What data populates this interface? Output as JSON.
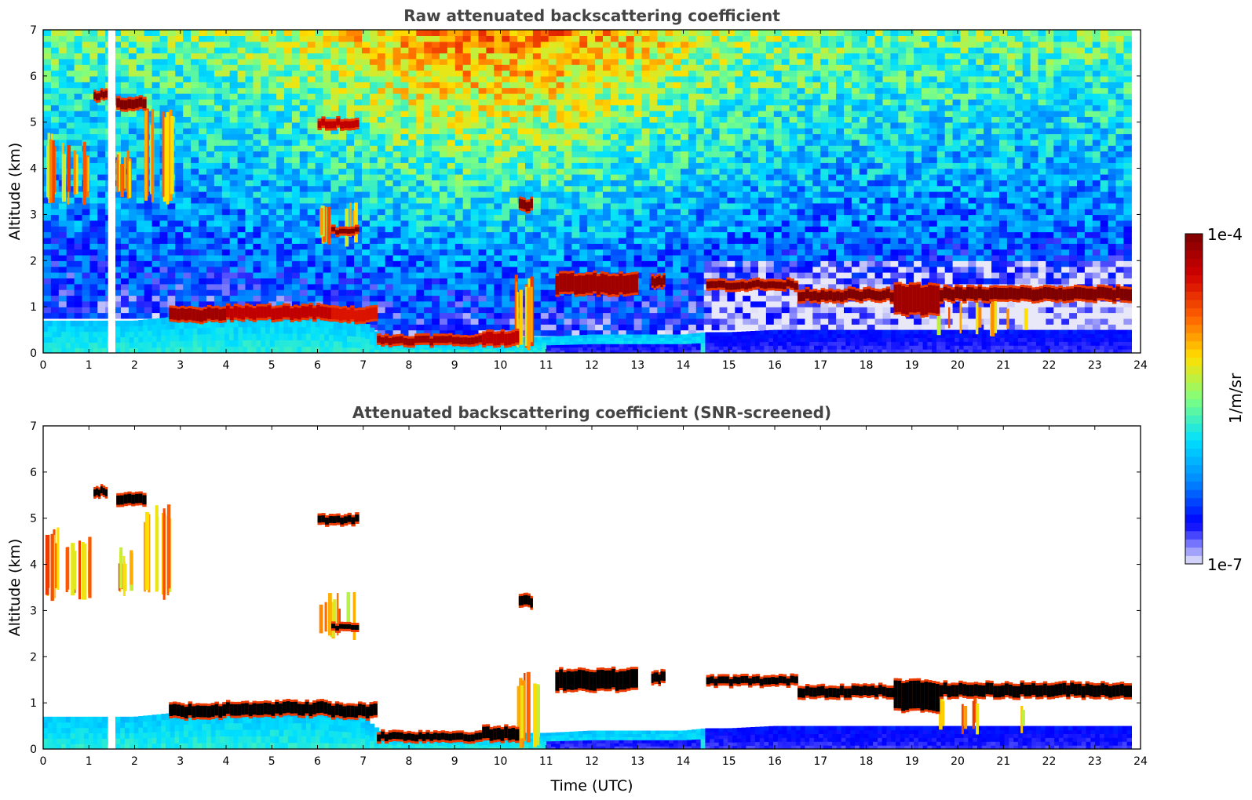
{
  "chart_data": [
    {
      "type": "heatmap",
      "title": "Raw attenuated backscattering coefficient",
      "xlabel": "",
      "ylabel": "Altitude (km)",
      "xlim": [
        0,
        24
      ],
      "ylim": [
        0,
        7
      ],
      "x_ticks": [
        "0",
        "1",
        "2",
        "3",
        "4",
        "5",
        "6",
        "7",
        "8",
        "9",
        "10",
        "11",
        "12",
        "13",
        "14",
        "15",
        "16",
        "17",
        "18",
        "19",
        "20",
        "21",
        "22",
        "23",
        "24"
      ],
      "y_ticks": [
        "0",
        "1",
        "2",
        "3",
        "4",
        "5",
        "6",
        "7"
      ],
      "grid": false,
      "screened": false,
      "data_gap": [
        1.42,
        1.58
      ],
      "boundary_layer_top_km": [
        [
          0,
          0.7
        ],
        [
          2,
          0.7
        ],
        [
          3,
          0.8
        ],
        [
          4,
          0.85
        ],
        [
          5,
          0.85
        ],
        [
          6,
          0.85
        ],
        [
          7,
          0.7
        ],
        [
          7.5,
          0.3
        ],
        [
          8,
          0.25
        ],
        [
          9,
          0.25
        ],
        [
          10,
          0.3
        ],
        [
          10.5,
          0.35
        ],
        [
          11,
          0.35
        ],
        [
          12,
          0.4
        ],
        [
          13,
          0.4
        ],
        [
          14,
          0.4
        ],
        [
          14.5,
          0.45
        ],
        [
          15,
          0.45
        ],
        [
          16,
          0.5
        ],
        [
          17,
          0.5
        ],
        [
          18,
          0.5
        ],
        [
          19,
          0.5
        ],
        [
          20,
          0.5
        ],
        [
          21,
          0.5
        ],
        [
          22,
          0.5
        ],
        [
          23,
          0.5
        ],
        [
          23.8,
          0.5
        ]
      ],
      "cloud_layers": [
        {
          "x": [
            1.1,
            1.4
          ],
          "base_km": 5.5,
          "top_km": 5.65,
          "intensity": 1.0
        },
        {
          "x": [
            1.6,
            2.25
          ],
          "base_km": 5.3,
          "top_km": 5.5,
          "intensity": 1.0
        },
        {
          "x": [
            2.75,
            4.0
          ],
          "base_km": 0.7,
          "top_km": 0.95,
          "intensity": 0.95
        },
        {
          "x": [
            4.0,
            6.3
          ],
          "base_km": 0.75,
          "top_km": 1.0,
          "intensity": 0.9
        },
        {
          "x": [
            6.3,
            7.3
          ],
          "base_km": 0.7,
          "top_km": 0.95,
          "intensity": 0.85
        },
        {
          "x": [
            6.0,
            6.9
          ],
          "base_km": 4.9,
          "top_km": 5.05,
          "intensity": 0.9
        },
        {
          "x": [
            6.3,
            6.9
          ],
          "base_km": 2.6,
          "top_km": 2.7,
          "intensity": 1.0
        },
        {
          "x": [
            7.3,
            9.6
          ],
          "base_km": 0.2,
          "top_km": 0.35,
          "intensity": 0.95
        },
        {
          "x": [
            9.6,
            10.4
          ],
          "base_km": 0.2,
          "top_km": 0.45,
          "intensity": 0.9
        },
        {
          "x": [
            10.4,
            10.7
          ],
          "base_km": 3.1,
          "top_km": 3.3,
          "intensity": 1.0
        },
        {
          "x": [
            11.2,
            13.0
          ],
          "base_km": 1.3,
          "top_km": 1.7,
          "intensity": 0.95
        },
        {
          "x": [
            13.3,
            13.6
          ],
          "base_km": 1.45,
          "top_km": 1.65,
          "intensity": 1.0
        },
        {
          "x": [
            14.5,
            16.5
          ],
          "base_km": 1.4,
          "top_km": 1.55,
          "intensity": 1.0
        },
        {
          "x": [
            16.5,
            18.6
          ],
          "base_km": 1.15,
          "top_km": 1.35,
          "intensity": 1.0
        },
        {
          "x": [
            18.6,
            19.6
          ],
          "base_km": 0.85,
          "top_km": 1.45,
          "intensity": 0.95
        },
        {
          "x": [
            19.6,
            23.8
          ],
          "base_km": 1.15,
          "top_km": 1.4,
          "intensity": 1.0
        }
      ],
      "virga": [
        {
          "x": [
            0.0,
            0.3
          ],
          "base_km": 3.2,
          "top_km": 4.8
        },
        {
          "x": [
            0.4,
            1.0
          ],
          "base_km": 3.2,
          "top_km": 4.6
        },
        {
          "x": [
            1.6,
            1.9
          ],
          "base_km": 3.3,
          "top_km": 4.4
        },
        {
          "x": [
            2.1,
            2.8
          ],
          "base_km": 3.2,
          "top_km": 5.3
        },
        {
          "x": [
            6.0,
            6.8
          ],
          "base_km": 2.3,
          "top_km": 3.4
        },
        {
          "x": [
            10.3,
            10.8
          ],
          "base_km": 0.0,
          "top_km": 1.7
        },
        {
          "x": [
            19.4,
            21.5
          ],
          "base_km": 0.3,
          "top_km": 1.2
        }
      ]
    },
    {
      "type": "heatmap",
      "title": "Attenuated backscattering coefficient (SNR-screened)",
      "xlabel": "Time (UTC)",
      "ylabel": "Altitude (km)",
      "xlim": [
        0,
        24
      ],
      "ylim": [
        0,
        7
      ],
      "x_ticks": [
        "0",
        "1",
        "2",
        "3",
        "4",
        "5",
        "6",
        "7",
        "8",
        "9",
        "10",
        "11",
        "12",
        "13",
        "14",
        "15",
        "16",
        "17",
        "18",
        "19",
        "20",
        "21",
        "22",
        "23",
        "24"
      ],
      "y_ticks": [
        "0",
        "1",
        "2",
        "3",
        "4",
        "5",
        "6",
        "7"
      ],
      "grid": false,
      "screened": true,
      "data_gap": [
        1.42,
        1.58
      ]
    }
  ],
  "colorbar": {
    "label": "1/m/sr",
    "top_label": "1e-4",
    "bottom_label": "1e-7",
    "scale": "log",
    "range": [
      1e-07,
      0.0001
    ],
    "colormap": [
      "#e8e8f8",
      "#0000ff",
      "#0088ff",
      "#00e0ff",
      "#7fff7f",
      "#ffe000",
      "#ff6000",
      "#d00000",
      "#7f0000"
    ]
  }
}
